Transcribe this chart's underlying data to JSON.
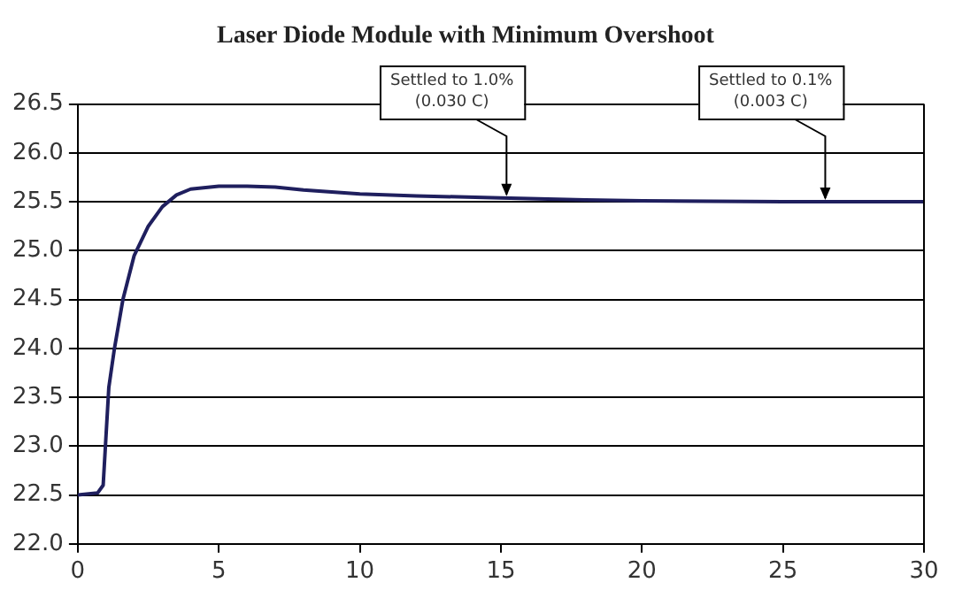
{
  "chart_data": {
    "type": "line",
    "title": "Laser Diode Module with Minimum Overshoot",
    "x": [
      0,
      0.7,
      0.9,
      1.1,
      1.3,
      1.6,
      2,
      2.5,
      3,
      3.5,
      4,
      5,
      6,
      7,
      8,
      10,
      12,
      15,
      18,
      20,
      25,
      30
    ],
    "series": [
      {
        "color": "#1f1f5e",
        "values": [
          22.5,
          22.52,
          22.6,
          23.6,
          24.0,
          24.5,
          24.95,
          25.25,
          25.45,
          25.57,
          25.63,
          25.66,
          25.66,
          25.65,
          25.62,
          25.58,
          25.56,
          25.54,
          25.52,
          25.51,
          25.5,
          25.5
        ]
      }
    ],
    "xlim": [
      0,
      30
    ],
    "xticks": [
      0,
      5,
      10,
      15,
      20,
      25,
      30
    ],
    "ylim": [
      22,
      26.5
    ],
    "yticks": [
      {
        "value": 22,
        "label": "22.0"
      },
      22.5,
      {
        "value": 23,
        "label": "23.0"
      },
      23.5,
      {
        "value": 24,
        "label": "24.0"
      },
      24.5,
      {
        "value": 25,
        "label": "25.0"
      },
      25.5,
      {
        "value": 26,
        "label": "26.0"
      },
      26.5
    ],
    "grid": "y",
    "legend": false,
    "marker": "none",
    "line_style": "solid",
    "annotations": [
      {
        "text": "Settled to 1.0%\n(0.030 C)",
        "x": 15.2,
        "y": 25.54
      },
      {
        "text": "Settled to 0.1%\n(0.003 C)",
        "x": 26.5,
        "y": 25.5
      }
    ]
  }
}
